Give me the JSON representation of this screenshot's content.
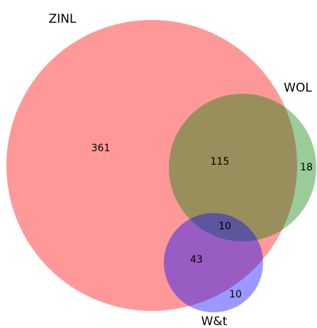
{
  "chart_data": {
    "type": "venn",
    "sets": [
      {
        "name": "ZINL",
        "color": "#ff0000"
      },
      {
        "name": "WOL",
        "color": "#008000"
      },
      {
        "name": "W&t",
        "color": "#0000ff"
      }
    ],
    "regions": [
      {
        "sets": [
          "ZINL"
        ],
        "value": 361
      },
      {
        "sets": [
          "ZINL",
          "WOL"
        ],
        "value": 115
      },
      {
        "sets": [
          "WOL"
        ],
        "value": 18
      },
      {
        "sets": [
          "ZINL",
          "WOL",
          "W&t"
        ],
        "value": 10
      },
      {
        "sets": [
          "ZINL",
          "W&t"
        ],
        "value": 43
      },
      {
        "sets": [
          "W&t"
        ],
        "value": 10
      }
    ]
  }
}
